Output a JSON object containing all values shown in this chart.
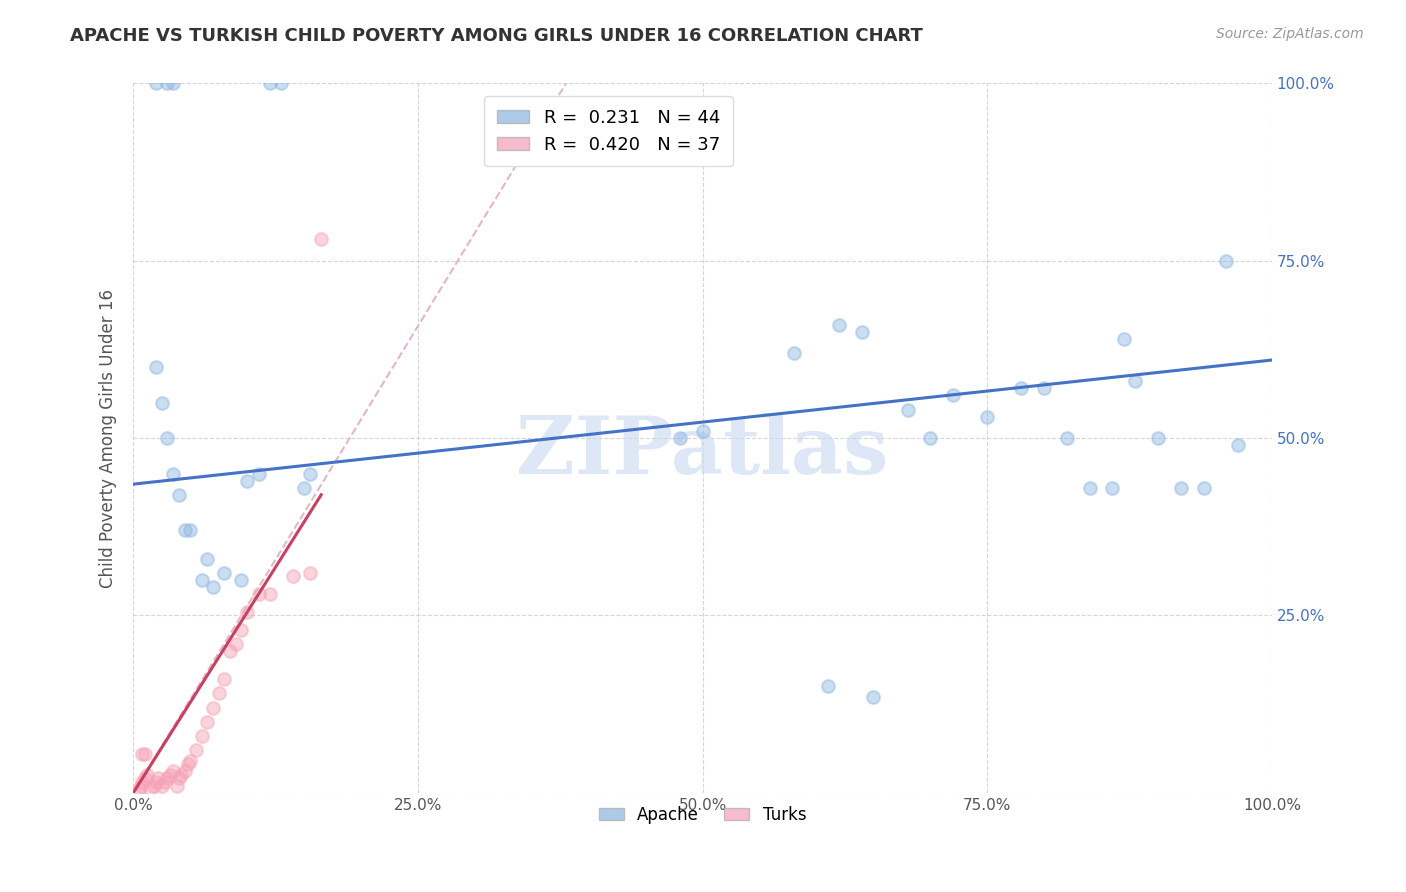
{
  "title": "APACHE VS TURKISH CHILD POVERTY AMONG GIRLS UNDER 16 CORRELATION CHART",
  "source": "Source: ZipAtlas.com",
  "ylabel": "Child Poverty Among Girls Under 16",
  "xlabel": "",
  "watermark": "ZIPatlas",
  "apache_R": 0.231,
  "apache_N": 44,
  "turks_R": 0.42,
  "turks_N": 37,
  "apache_color": "#8ab4e0",
  "turks_color": "#f5a0b5",
  "apache_line_color": "#4472C4",
  "turks_line_color": "#C94060",
  "ref_line_color": "#e0b0bc",
  "background_color": "#ffffff",
  "grid_color": "#cccccc",
  "title_color": "#333333",
  "apache_x": [
    0.02,
    0.03,
    0.035,
    0.12,
    0.13,
    0.02,
    0.025,
    0.03,
    0.035,
    0.04,
    0.045,
    0.05,
    0.06,
    0.065,
    0.07,
    0.08,
    0.095,
    0.1,
    0.11,
    0.15,
    0.155,
    0.58,
    0.62,
    0.64,
    0.68,
    0.72,
    0.75,
    0.78,
    0.8,
    0.82,
    0.84,
    0.86,
    0.87,
    0.88,
    0.9,
    0.92,
    0.94,
    0.96,
    0.97,
    0.61,
    0.65,
    0.7,
    0.48,
    0.5
  ],
  "apache_y": [
    1.0,
    1.0,
    1.0,
    1.0,
    1.0,
    0.6,
    0.55,
    0.5,
    0.45,
    0.42,
    0.37,
    0.37,
    0.3,
    0.33,
    0.29,
    0.31,
    0.3,
    0.44,
    0.45,
    0.43,
    0.45,
    0.62,
    0.66,
    0.65,
    0.54,
    0.56,
    0.53,
    0.57,
    0.57,
    0.5,
    0.43,
    0.43,
    0.64,
    0.58,
    0.5,
    0.43,
    0.43,
    0.75,
    0.49,
    0.15,
    0.135,
    0.5,
    0.5,
    0.51
  ],
  "turks_x": [
    0.005,
    0.007,
    0.008,
    0.01,
    0.012,
    0.015,
    0.018,
    0.02,
    0.022,
    0.025,
    0.028,
    0.03,
    0.032,
    0.035,
    0.038,
    0.04,
    0.042,
    0.045,
    0.048,
    0.05,
    0.055,
    0.06,
    0.065,
    0.07,
    0.075,
    0.08,
    0.085,
    0.09,
    0.095,
    0.1,
    0.11,
    0.12,
    0.14,
    0.155,
    0.165,
    0.008,
    0.01
  ],
  "turks_y": [
    0.005,
    0.01,
    0.015,
    0.02,
    0.025,
    0.005,
    0.01,
    0.015,
    0.02,
    0.01,
    0.015,
    0.02,
    0.025,
    0.03,
    0.01,
    0.02,
    0.025,
    0.03,
    0.04,
    0.045,
    0.06,
    0.08,
    0.1,
    0.12,
    0.14,
    0.16,
    0.2,
    0.21,
    0.23,
    0.255,
    0.28,
    0.28,
    0.305,
    0.31,
    0.78,
    0.055,
    0.055
  ],
  "xlim": [
    0.0,
    1.0
  ],
  "ylim": [
    0.0,
    1.0
  ],
  "xticks": [
    0.0,
    0.25,
    0.5,
    0.75,
    1.0
  ],
  "yticks": [
    0.0,
    0.25,
    0.5,
    0.75,
    1.0
  ],
  "xticklabels": [
    "0.0%",
    "25.0%",
    "50.0%",
    "75.0%",
    "100.0%"
  ],
  "yticklabels_right": [
    "",
    "25.0%",
    "50.0%",
    "75.0%",
    "100.0%"
  ],
  "marker_size": 85,
  "marker_alpha": 0.45,
  "marker_lw": 1.5,
  "apache_line_y0": 0.435,
  "apache_line_y1": 0.61,
  "turks_line_x0": 0.0,
  "turks_line_y0": 0.0,
  "turks_line_x1": 0.165,
  "turks_line_y1": 0.42
}
